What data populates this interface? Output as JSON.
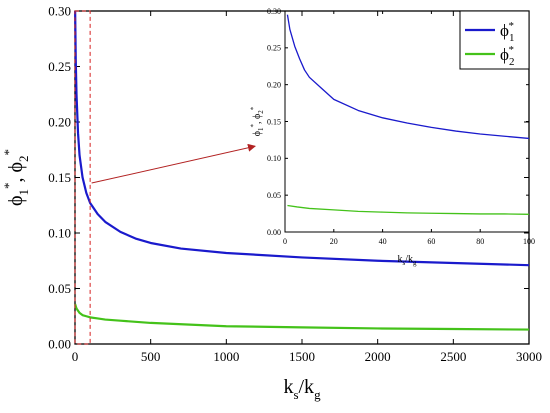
{
  "chart_data": [
    {
      "type": "line",
      "role": "main",
      "xlabel": "k_s/k_g",
      "ylabel": "ϕ1*, ϕ2*",
      "xlim": [
        0,
        3000
      ],
      "ylim": [
        0,
        0.3
      ],
      "xticks": [
        0,
        500,
        1000,
        1500,
        2000,
        2500,
        3000
      ],
      "yticks": [
        0.0,
        0.05,
        0.1,
        0.15,
        0.2,
        0.25,
        0.3
      ],
      "ytick_labels": [
        "0.00",
        "0.05",
        "0.10",
        "0.15",
        "0.20",
        "0.25",
        "0.30"
      ],
      "grid": false,
      "series": [
        {
          "name": "ϕ1*",
          "color": "#1a1acc",
          "x": [
            1,
            5,
            10,
            20,
            30,
            50,
            75,
            100,
            150,
            200,
            300,
            400,
            500,
            700,
            1000,
            1500,
            2000,
            2500,
            3000
          ],
          "y": [
            0.3,
            0.255,
            0.225,
            0.19,
            0.17,
            0.15,
            0.136,
            0.127,
            0.117,
            0.11,
            0.101,
            0.095,
            0.091,
            0.086,
            0.082,
            0.078,
            0.075,
            0.073,
            0.071
          ]
        },
        {
          "name": "ϕ2*",
          "color": "#44c21a",
          "x": [
            1,
            5,
            10,
            20,
            30,
            50,
            75,
            100,
            150,
            200,
            300,
            500,
            1000,
            1500,
            2000,
            2500,
            3000
          ],
          "y": [
            0.036,
            0.034,
            0.032,
            0.03,
            0.028,
            0.026,
            0.025,
            0.024,
            0.023,
            0.022,
            0.021,
            0.019,
            0.016,
            0.015,
            0.014,
            0.0135,
            0.013
          ]
        }
      ],
      "annotations": [
        {
          "type": "zoom-box",
          "xrange": [
            0,
            100
          ],
          "yrange": [
            0,
            0.3
          ],
          "color": "#d62020"
        },
        {
          "type": "arrow",
          "from": [
            110,
            0.145
          ],
          "to_inset": [
            0,
            0.13
          ],
          "color": "#b22222"
        }
      ]
    },
    {
      "type": "line",
      "role": "inset",
      "xlabel": "k_s/k_g",
      "ylabel": "ϕ1*, ϕ2*",
      "xlim": [
        0,
        100
      ],
      "ylim": [
        0,
        0.3
      ],
      "xticks": [
        0,
        20,
        40,
        60,
        80,
        100
      ],
      "yticks": [
        0.0,
        0.05,
        0.1,
        0.15,
        0.2,
        0.25,
        0.3
      ],
      "ytick_labels": [
        "0.00",
        "0.05",
        "0.10",
        "0.15",
        "0.20",
        "0.25",
        "0.30"
      ],
      "grid": false,
      "series": [
        {
          "name": "ϕ1*",
          "color": "#1a1acc",
          "x": [
            1,
            2,
            4,
            6,
            8,
            10,
            15,
            20,
            30,
            40,
            50,
            60,
            70,
            80,
            90,
            100
          ],
          "y": [
            0.295,
            0.275,
            0.252,
            0.235,
            0.22,
            0.21,
            0.195,
            0.18,
            0.165,
            0.155,
            0.148,
            0.142,
            0.137,
            0.133,
            0.13,
            0.127
          ]
        },
        {
          "name": "ϕ2*",
          "color": "#44c21a",
          "x": [
            1,
            5,
            10,
            20,
            30,
            40,
            50,
            60,
            70,
            80,
            90,
            100
          ],
          "y": [
            0.036,
            0.034,
            0.032,
            0.03,
            0.028,
            0.027,
            0.026,
            0.0255,
            0.025,
            0.0245,
            0.0245,
            0.024
          ]
        }
      ]
    }
  ],
  "legend": {
    "placement": "top-right",
    "items": [
      {
        "label": "ϕ1*",
        "base": "ϕ",
        "sub": "1",
        "sup": "*",
        "color": "#1a1acc"
      },
      {
        "label": "ϕ2*",
        "base": "ϕ",
        "sub": "2",
        "sup": "*",
        "color": "#44c21a"
      }
    ]
  }
}
